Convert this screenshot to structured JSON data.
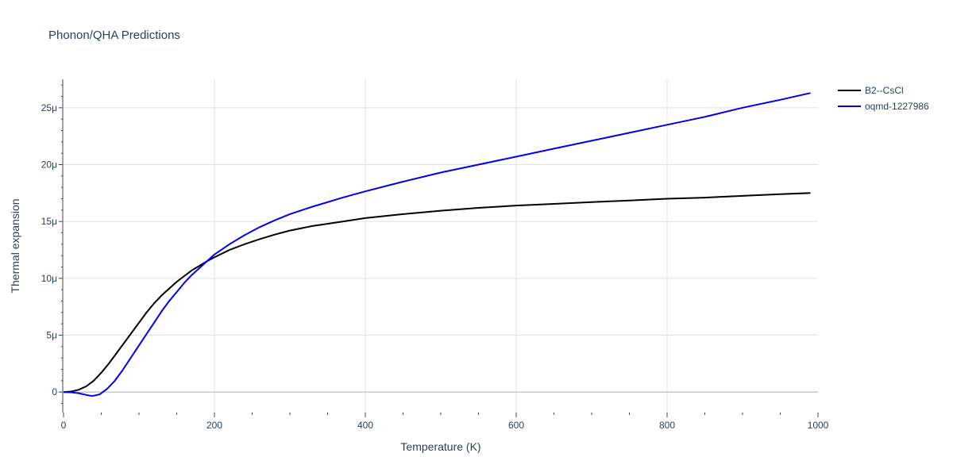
{
  "chart_data": {
    "type": "line",
    "title": "Phonon/QHA Predictions",
    "xlabel": "Temperature (K)",
    "ylabel": "Thermal expansion",
    "xlim": [
      0,
      1000
    ],
    "ylim": [
      -1.8,
      27.5
    ],
    "x_ticks": [
      {
        "value": 0,
        "label": "0"
      },
      {
        "value": 200,
        "label": "200"
      },
      {
        "value": 400,
        "label": "400"
      },
      {
        "value": 600,
        "label": "600"
      },
      {
        "value": 800,
        "label": "800"
      },
      {
        "value": 1000,
        "label": "1000"
      }
    ],
    "y_ticks": [
      {
        "value": 0,
        "label": "0"
      },
      {
        "value": 5,
        "label": "5μ"
      },
      {
        "value": 10,
        "label": "10μ"
      },
      {
        "value": 15,
        "label": "15μ"
      },
      {
        "value": 20,
        "label": "20μ"
      },
      {
        "value": 25,
        "label": "25μ"
      }
    ],
    "y_unit_note": "values in units of 1e-6 (μ)",
    "grid": true,
    "legend_position": "top-right",
    "series": [
      {
        "name": "B2--CsCl",
        "color": "#000000",
        "points": [
          [
            0,
            0
          ],
          [
            10,
            0.05
          ],
          [
            20,
            0.2
          ],
          [
            30,
            0.5
          ],
          [
            40,
            1.0
          ],
          [
            50,
            1.7
          ],
          [
            60,
            2.5
          ],
          [
            70,
            3.4
          ],
          [
            80,
            4.3
          ],
          [
            90,
            5.2
          ],
          [
            100,
            6.1
          ],
          [
            110,
            7.0
          ],
          [
            120,
            7.8
          ],
          [
            130,
            8.5
          ],
          [
            140,
            9.1
          ],
          [
            150,
            9.7
          ],
          [
            160,
            10.2
          ],
          [
            170,
            10.7
          ],
          [
            180,
            11.1
          ],
          [
            190,
            11.5
          ],
          [
            200,
            11.85
          ],
          [
            220,
            12.5
          ],
          [
            240,
            13.0
          ],
          [
            260,
            13.45
          ],
          [
            280,
            13.85
          ],
          [
            300,
            14.2
          ],
          [
            330,
            14.6
          ],
          [
            370,
            15.0
          ],
          [
            400,
            15.3
          ],
          [
            450,
            15.65
          ],
          [
            500,
            15.95
          ],
          [
            550,
            16.2
          ],
          [
            600,
            16.4
          ],
          [
            650,
            16.55
          ],
          [
            700,
            16.7
          ],
          [
            750,
            16.85
          ],
          [
            800,
            17.0
          ],
          [
            850,
            17.1
          ],
          [
            900,
            17.25
          ],
          [
            950,
            17.4
          ],
          [
            990,
            17.5
          ]
        ]
      },
      {
        "name": "oqmd-1227986",
        "color": "#0000ee",
        "points": [
          [
            0,
            0
          ],
          [
            10,
            -0.02
          ],
          [
            20,
            -0.1
          ],
          [
            30,
            -0.25
          ],
          [
            38,
            -0.35
          ],
          [
            48,
            -0.2
          ],
          [
            58,
            0.3
          ],
          [
            68,
            1.0
          ],
          [
            78,
            1.9
          ],
          [
            90,
            3.1
          ],
          [
            100,
            4.1
          ],
          [
            110,
            5.1
          ],
          [
            120,
            6.1
          ],
          [
            130,
            7.1
          ],
          [
            140,
            8.0
          ],
          [
            150,
            8.8
          ],
          [
            160,
            9.6
          ],
          [
            170,
            10.3
          ],
          [
            180,
            10.9
          ],
          [
            190,
            11.5
          ],
          [
            200,
            12.1
          ],
          [
            220,
            13.0
          ],
          [
            240,
            13.8
          ],
          [
            260,
            14.5
          ],
          [
            280,
            15.1
          ],
          [
            300,
            15.65
          ],
          [
            330,
            16.3
          ],
          [
            370,
            17.1
          ],
          [
            400,
            17.65
          ],
          [
            450,
            18.5
          ],
          [
            500,
            19.3
          ],
          [
            550,
            20.0
          ],
          [
            600,
            20.7
          ],
          [
            650,
            21.4
          ],
          [
            700,
            22.1
          ],
          [
            750,
            22.8
          ],
          [
            800,
            23.5
          ],
          [
            850,
            24.2
          ],
          [
            900,
            25.0
          ],
          [
            950,
            25.7
          ],
          [
            990,
            26.3
          ]
        ]
      }
    ]
  }
}
